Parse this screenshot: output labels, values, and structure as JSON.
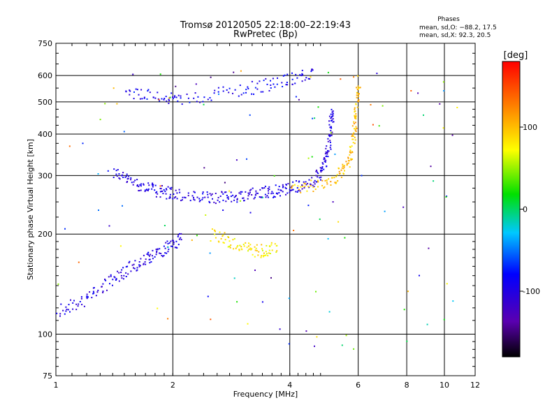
{
  "chart_data": {
    "type": "scatter",
    "title": "Tromsø 20120505 22:18:00–22:19:43",
    "subtitle": "RwPretec (Bp)",
    "xlabel": "Frequency [MHz]",
    "ylabel": "Stationary phase Virtual Height [km]",
    "x_scale": "log",
    "y_scale": "log",
    "xlim": [
      1,
      12
    ],
    "ylim": [
      75,
      750
    ],
    "x_ticks": [
      1,
      2,
      4,
      6,
      8,
      10,
      12
    ],
    "x_tick_labels": [
      "1",
      "2",
      "4",
      "6",
      "8",
      "10",
      "12"
    ],
    "y_ticks": [
      75,
      100,
      200,
      300,
      400,
      500,
      600,
      750
    ],
    "y_tick_labels": [
      "75",
      "100",
      "200",
      "300",
      "400",
      "500",
      "600",
      "750"
    ],
    "grid": true,
    "stats": {
      "heading": "Phases",
      "line_o": "mean, sd,O: −88.2, 17.5",
      "line_x": "mean, sd,X:  92.3, 20.5"
    },
    "colorbar": {
      "label": "[deg]",
      "range": [
        -180,
        180
      ],
      "ticks": [
        -100,
        0,
        100
      ],
      "tick_labels": [
        "-100",
        "0",
        "100"
      ]
    },
    "series": [
      {
        "description": "O-mode F-region trace (blue)",
        "points": [
          [
            1.4,
            310
          ],
          [
            1.5,
            295
          ],
          [
            1.6,
            285
          ],
          [
            1.7,
            278
          ],
          [
            1.8,
            272
          ],
          [
            1.9,
            268
          ],
          [
            2.0,
            265
          ],
          [
            2.2,
            260
          ],
          [
            2.4,
            258
          ],
          [
            2.6,
            258
          ],
          [
            2.8,
            260
          ],
          [
            3.0,
            263
          ],
          [
            3.2,
            265
          ],
          [
            3.4,
            268
          ],
          [
            3.6,
            270
          ],
          [
            3.8,
            272
          ],
          [
            4.0,
            275
          ],
          [
            4.3,
            280
          ],
          [
            4.6,
            290
          ],
          [
            4.8,
            305
          ],
          [
            4.9,
            330
          ],
          [
            5.0,
            360
          ],
          [
            5.05,
            400
          ],
          [
            5.1,
            440
          ],
          [
            5.15,
            480
          ]
        ],
        "phase": -100
      },
      {
        "description": "X-mode F-region trace (yellow)",
        "points": [
          [
            4.0,
            275
          ],
          [
            4.5,
            280
          ],
          [
            5.0,
            290
          ],
          [
            5.3,
            300
          ],
          [
            5.5,
            315
          ],
          [
            5.7,
            340
          ],
          [
            5.8,
            380
          ],
          [
            5.85,
            420
          ],
          [
            5.9,
            470
          ],
          [
            5.95,
            530
          ],
          [
            6.0,
            580
          ]
        ],
        "phase": 100
      },
      {
        "description": "E/F1 lower trace (blue)",
        "points": [
          [
            1.0,
            118
          ],
          [
            1.1,
            122
          ],
          [
            1.2,
            128
          ],
          [
            1.3,
            138
          ],
          [
            1.4,
            148
          ],
          [
            1.5,
            155
          ],
          [
            1.6,
            162
          ],
          [
            1.7,
            168
          ],
          [
            1.8,
            175
          ],
          [
            1.9,
            182
          ],
          [
            2.0,
            188
          ],
          [
            2.1,
            195
          ]
        ],
        "phase": -100
      },
      {
        "description": "Upper multiple-echo trace",
        "points": [
          [
            1.5,
            540
          ],
          [
            1.7,
            530
          ],
          [
            1.9,
            515
          ],
          [
            2.1,
            505
          ],
          [
            2.5,
            530
          ],
          [
            3.0,
            545
          ],
          [
            3.4,
            560
          ],
          [
            3.8,
            580
          ],
          [
            4.2,
            595
          ],
          [
            4.6,
            610
          ]
        ],
        "phase": -90
      },
      {
        "description": "Mid-height trace",
        "points": [
          [
            2.5,
            200
          ],
          [
            2.7,
            195
          ],
          [
            2.9,
            188
          ],
          [
            3.1,
            182
          ],
          [
            3.3,
            178
          ],
          [
            3.5,
            180
          ],
          [
            3.7,
            185
          ]
        ],
        "phase": 80
      }
    ]
  }
}
